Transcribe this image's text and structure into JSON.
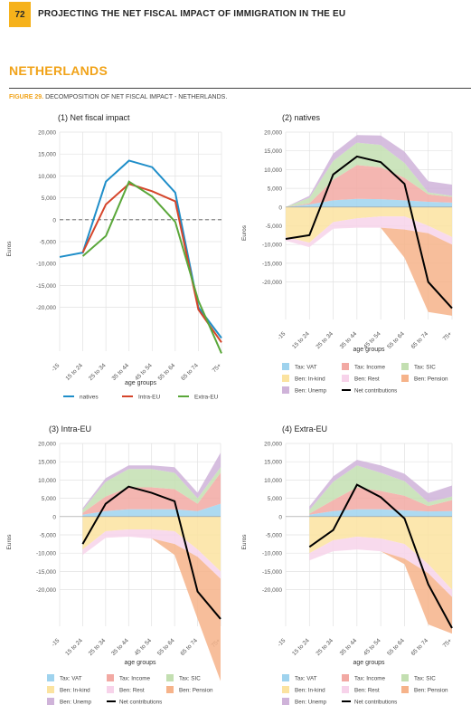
{
  "header": {
    "page_number": "72",
    "running_title": "PROJECTING THE NET FISCAL IMPACT OF IMMIGRATION IN THE EU"
  },
  "section_title": "NETHERLANDS",
  "figure": {
    "label": "FIGURE 29.",
    "caption": " DECOMPOSITION OF NET FISCAL IMPACT - NETHERLANDS."
  },
  "colors": {
    "natives": "#1f8ec9",
    "intra_eu": "#d5452b",
    "extra_eu": "#5aa73a",
    "tax_vat": "#9fd3ee",
    "tax_income": "#f2a9a3",
    "tax_sic": "#c3dfb1",
    "ben_inkind": "#fbe3a0",
    "ben_rest": "#f7d3ea",
    "ben_pension": "#f6b38a",
    "ben_unemp": "#cfb3d9",
    "net": "#000000"
  },
  "legend_labels": {
    "tax_vat": "Tax: VAT",
    "tax_income": "Tax: Income",
    "tax_sic": "Tax: SIC",
    "ben_inkind": "Ben: In-kind",
    "ben_rest": "Ben: Rest",
    "ben_pension": "Ben: Pension",
    "ben_unemp": "Ben: Unemp",
    "net": "Net contributions"
  },
  "chart_data": [
    {
      "type": "line",
      "title": "(1) Net fiscal impact",
      "xlabel": "age groups",
      "ylabel": "Euros",
      "categories": [
        "-15",
        "15 to 24",
        "25 to 34",
        "35 to 44",
        "45 to 54",
        "55 to 64",
        "65 to 74",
        "75+"
      ],
      "ylim": [
        -30000,
        20000
      ],
      "yticks": [
        20000,
        15000,
        10000,
        5000,
        0,
        -5000,
        -10000,
        -15000,
        -20000
      ],
      "ytick_labels": [
        "20,000",
        "15,000",
        "10,000",
        "5,000",
        "0",
        "-5,000",
        "-10,000",
        "-15,000",
        "-20,000"
      ],
      "grid": true,
      "zero_line": "dashed",
      "legend_position": "bottom",
      "series": [
        {
          "name": "natives",
          "values": [
            -8500,
            -7500,
            8700,
            13500,
            12000,
            6200,
            -20000,
            -27000
          ]
        },
        {
          "name": "Intra-EU",
          "values": [
            null,
            -7500,
            3500,
            8200,
            6500,
            4200,
            -20500,
            -28000
          ]
        },
        {
          "name": "Extra-EU",
          "values": [
            null,
            -8300,
            -3700,
            8700,
            5300,
            -500,
            -18500,
            -30500
          ]
        }
      ]
    },
    {
      "type": "area",
      "title": "(2) natives",
      "xlabel": "age groups",
      "ylabel": "Euros",
      "categories": [
        "-15",
        "15 to 24",
        "25 to 34",
        "35 to 44",
        "45 to 54",
        "55 to 64",
        "65 to 74",
        "75+"
      ],
      "ylim": [
        -30000,
        20000
      ],
      "yticks": [
        20000,
        15000,
        10000,
        5000,
        0,
        -5000,
        -10000,
        -15000,
        -20000
      ],
      "ytick_labels": [
        "20,000",
        "15,000",
        "10,000",
        "5,000",
        "0",
        "-5,000",
        "-10,000",
        "-15,000",
        "-20,000"
      ],
      "grid": true,
      "legend_position": "bottom",
      "positive_series": [
        {
          "name": "Tax: VAT",
          "values": [
            0,
            700,
            1800,
            2200,
            2100,
            1800,
            1400,
            1200
          ]
        },
        {
          "name": "Tax: Income",
          "values": [
            0,
            300,
            5500,
            9000,
            8500,
            6000,
            2000,
            1500
          ]
        },
        {
          "name": "Tax: SIC",
          "values": [
            0,
            1500,
            5000,
            6000,
            6000,
            4000,
            500,
            300
          ]
        },
        {
          "name": "Ben: Unemp",
          "values": [
            0,
            500,
            2000,
            2000,
            2500,
            3000,
            3000,
            3000
          ]
        }
      ],
      "negative_series": [
        {
          "name": "Ben: In-kind",
          "values": [
            -8000,
            -9500,
            -4000,
            -3000,
            -2500,
            -2500,
            -5000,
            -8000
          ]
        },
        {
          "name": "Ben: Rest",
          "values": [
            -1000,
            -1200,
            -1800,
            -2500,
            -3000,
            -3500,
            -2000,
            -2000
          ]
        },
        {
          "name": "Ben: Pension",
          "values": [
            0,
            0,
            0,
            0,
            0,
            -7500,
            -21000,
            -19000
          ]
        }
      ],
      "net_contributions": [
        -8500,
        -7500,
        8700,
        13500,
        12000,
        6200,
        -20000,
        -27000
      ]
    },
    {
      "type": "area",
      "title": "(3) Intra-EU",
      "xlabel": "age groups",
      "ylabel": "Euros",
      "categories": [
        "-15",
        "15 to 24",
        "25 to 34",
        "35 to 44",
        "45 to 54",
        "55 to 64",
        "65 to 74",
        "75+"
      ],
      "ylim": [
        -30000,
        20000
      ],
      "yticks": [
        20000,
        15000,
        10000,
        5000,
        0,
        -5000,
        -10000,
        -15000,
        -20000
      ],
      "ytick_labels": [
        "20,000",
        "15,000",
        "10,000",
        "5,000",
        "0",
        "-5,000",
        "-10,000",
        "-15,000",
        "-20,000"
      ],
      "grid": true,
      "legend_position": "bottom",
      "positive_series": [
        {
          "name": "Tax: VAT",
          "values": [
            null,
            500,
            1500,
            2000,
            2000,
            2000,
            1500,
            3500
          ]
        },
        {
          "name": "Tax: Income",
          "values": [
            null,
            500,
            4000,
            6000,
            6000,
            5500,
            2000,
            8500
          ]
        },
        {
          "name": "Tax: SIC",
          "values": [
            null,
            800,
            4000,
            5000,
            5000,
            4500,
            1500,
            1500
          ]
        },
        {
          "name": "Ben: Unemp",
          "values": [
            null,
            500,
            1000,
            1000,
            1000,
            1500,
            1500,
            4000
          ]
        }
      ],
      "negative_series": [
        {
          "name": "Ben: In-kind",
          "values": [
            null,
            -9000,
            -4000,
            -3500,
            -3500,
            -4000,
            -9000,
            -15000
          ]
        },
        {
          "name": "Ben: Rest",
          "values": [
            null,
            -1500,
            -1800,
            -2000,
            -2500,
            -3500,
            -2000,
            -2000
          ]
        },
        {
          "name": "Ben: Pension",
          "values": [
            null,
            0,
            0,
            0,
            0,
            -3000,
            -17000,
            -28000
          ]
        }
      ],
      "net_contributions": [
        null,
        -7500,
        3500,
        8200,
        6500,
        4200,
        -20500,
        -28000
      ]
    },
    {
      "type": "area",
      "title": "(4) Extra-EU",
      "xlabel": "age groups",
      "ylabel": "Euros",
      "categories": [
        "-15",
        "15 to 24",
        "25 to 34",
        "35 to 44",
        "45 to 54",
        "55 to 64",
        "65 to 74",
        "75+"
      ],
      "ylim": [
        -30000,
        20000
      ],
      "yticks": [
        20000,
        15000,
        10000,
        5000,
        0,
        -5000,
        -10000,
        -15000,
        -20000
      ],
      "ytick_labels": [
        "20,000",
        "15,000",
        "10,000",
        "5,000",
        "0",
        "-5,000",
        "-10,000",
        "-15,000",
        "-20,000"
      ],
      "grid": true,
      "legend_position": "bottom",
      "positive_series": [
        {
          "name": "Tax: VAT",
          "values": [
            null,
            500,
            1500,
            2000,
            2000,
            1700,
            1400,
            1500
          ]
        },
        {
          "name": "Tax: Income",
          "values": [
            null,
            300,
            3000,
            6000,
            5000,
            4000,
            1500,
            3000
          ]
        },
        {
          "name": "Tax: SIC",
          "values": [
            null,
            1000,
            5000,
            6000,
            5000,
            4000,
            1000,
            1000
          ]
        },
        {
          "name": "Ben: Unemp",
          "values": [
            null,
            1000,
            1500,
            1500,
            2000,
            2000,
            2500,
            3000
          ]
        }
      ],
      "negative_series": [
        {
          "name": "Ben: In-kind",
          "values": [
            null,
            -10000,
            -6500,
            -5500,
            -6000,
            -7500,
            -13000,
            -20000
          ]
        },
        {
          "name": "Ben: Rest",
          "values": [
            null,
            -2000,
            -3000,
            -3500,
            -3500,
            -4000,
            -2500,
            -2000
          ]
        },
        {
          "name": "Ben: Pension",
          "values": [
            null,
            0,
            0,
            0,
            0,
            -1500,
            -14000,
            -10000
          ]
        }
      ],
      "net_contributions": [
        null,
        -8300,
        -3700,
        8700,
        5300,
        -500,
        -18500,
        -30500
      ]
    }
  ]
}
